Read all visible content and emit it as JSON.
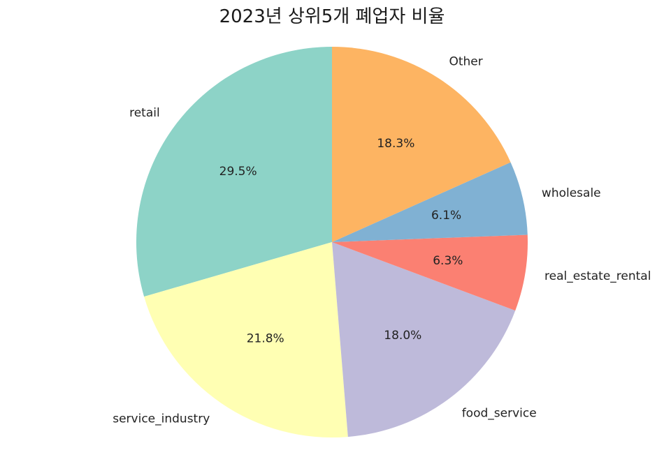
{
  "chart_data": {
    "type": "pie",
    "title": "2023년 상위5개 폐업자 비율",
    "start_angle_deg": 90,
    "direction": "counterclockwise",
    "slices": [
      {
        "label": "retail",
        "value": 29.5,
        "pct_label": "29.5%",
        "color": "#8dd3c7"
      },
      {
        "label": "service_industry",
        "value": 21.8,
        "pct_label": "21.8%",
        "color": "#ffffb3"
      },
      {
        "label": "food_service",
        "value": 18.0,
        "pct_label": "18.0%",
        "color": "#bebada"
      },
      {
        "label": "real_estate_rental",
        "value": 6.3,
        "pct_label": "6.3%",
        "color": "#fb8072"
      },
      {
        "label": "wholesale",
        "value": 6.1,
        "pct_label": "6.1%",
        "color": "#80b1d3"
      },
      {
        "label": "Other",
        "value": 18.3,
        "pct_label": "18.3%",
        "color": "#fdb462"
      }
    ]
  }
}
